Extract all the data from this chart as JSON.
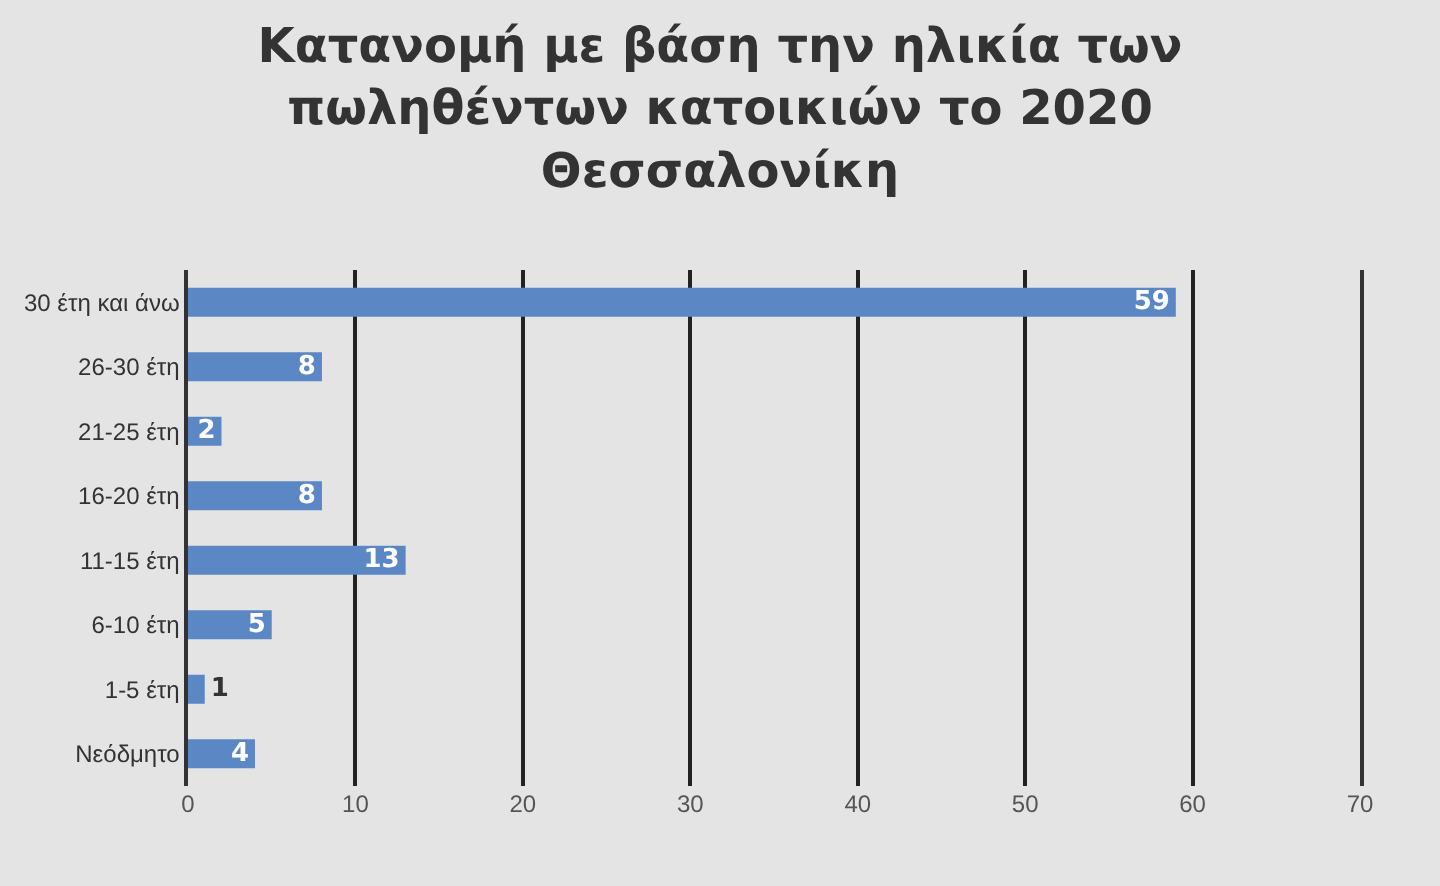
{
  "chart_data": {
    "type": "bar",
    "orientation": "horizontal",
    "title": "Κατανομή με βάση την ηλικία των\nπωληθέντων κατοικιών το 2020\nΘεσσαλονίκη",
    "categories": [
      "30 έτη και άνω",
      "26-30 έτη",
      "21-25 έτη",
      "16-20 έτη",
      "11-15 έτη",
      "6-10 έτη",
      "1-5 έτη",
      "Νεόδμητο"
    ],
    "values": [
      59,
      8,
      2,
      8,
      13,
      5,
      1,
      4
    ],
    "color": "#5b87c5",
    "xlim": [
      0,
      70
    ],
    "xticks": [
      0,
      10,
      20,
      30,
      40,
      50,
      60,
      70
    ],
    "grid": "x",
    "data_labels": true,
    "legend": false
  }
}
